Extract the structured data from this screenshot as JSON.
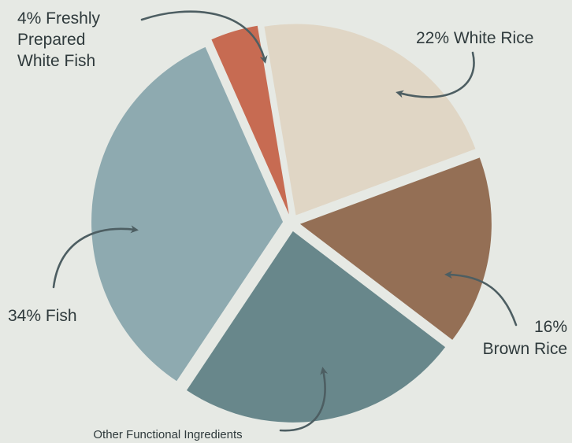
{
  "chart_data": {
    "type": "pie",
    "title": "",
    "slices": [
      {
        "name": "White Rice",
        "value": 22,
        "color": "#e0d6c5",
        "label_lines": [
          "22% White Rice"
        ]
      },
      {
        "name": "Brown Rice",
        "value": 16,
        "color": "#946f55",
        "label_lines": [
          "16%",
          "Brown Rice"
        ]
      },
      {
        "name": "Other Functional Ingredients",
        "value": 24,
        "color": "#68878b",
        "label_lines": [
          "Other Functional Ingredients"
        ]
      },
      {
        "name": "Fish",
        "value": 34,
        "color": "#8eaab0",
        "label_lines": [
          "34% Fish"
        ]
      },
      {
        "name": "Freshly Prepared White Fish",
        "value": 4,
        "color": "#c76b52",
        "label_lines": [
          "4% Freshly",
          "Prepared",
          "White Fish"
        ]
      }
    ],
    "legend": "none",
    "annotation_arrows": true
  },
  "colors": {
    "background": "#e6e9e4",
    "text": "#2f3a3c",
    "arrow": "#4d5e62"
  }
}
